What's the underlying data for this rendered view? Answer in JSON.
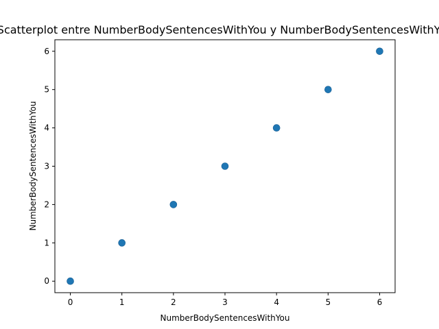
{
  "chart_data": {
    "type": "scatter",
    "title": "Scatterplot entre NumberBodySentencesWithYou y NumberBodySentencesWithYou",
    "xlabel": "NumberBodySentencesWithYou",
    "ylabel": "NumberBodySentencesWithYou",
    "xlim": [
      -0.3,
      6.3
    ],
    "ylim": [
      -0.3,
      6.3
    ],
    "xticks": [
      0,
      1,
      2,
      3,
      4,
      5,
      6
    ],
    "yticks": [
      0,
      1,
      2,
      3,
      4,
      5,
      6
    ],
    "grid": false,
    "legend": "none",
    "marker_color": "#1f77b4",
    "points": [
      {
        "x": 0,
        "y": 0
      },
      {
        "x": 1,
        "y": 1
      },
      {
        "x": 2,
        "y": 2
      },
      {
        "x": 3,
        "y": 3
      },
      {
        "x": 4,
        "y": 4
      },
      {
        "x": 5,
        "y": 5
      },
      {
        "x": 6,
        "y": 6
      }
    ]
  }
}
